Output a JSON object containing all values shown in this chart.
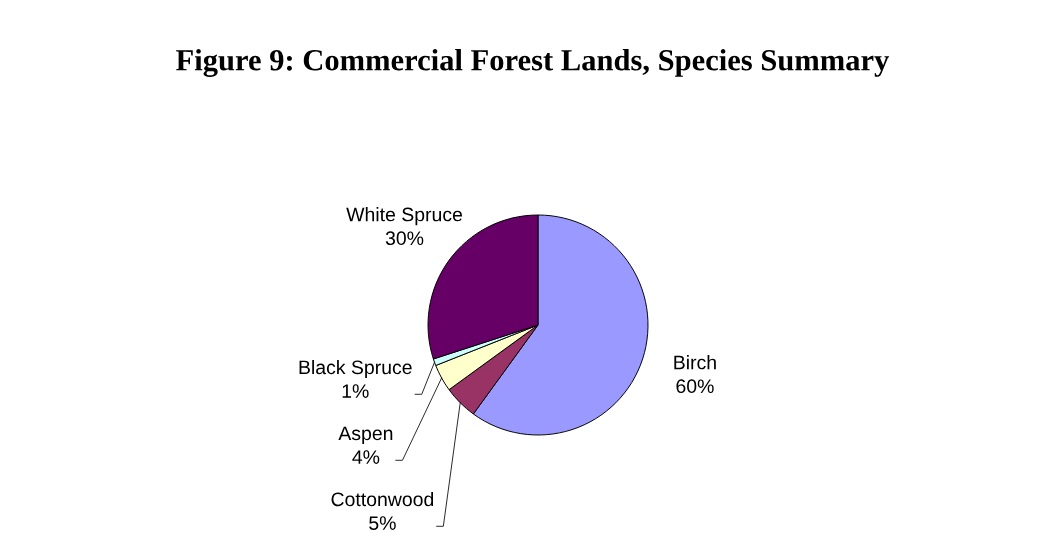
{
  "chart_data": {
    "type": "pie",
    "title": "Figure 9: Commercial Forest Lands, Species Summary",
    "categories": [
      "Birch",
      "Cottonwood",
      "Aspen",
      "Black Spruce",
      "White Spruce"
    ],
    "values": [
      60,
      5,
      4,
      1,
      30
    ],
    "colors": [
      "#9999ff",
      "#993366",
      "#ffffcc",
      "#ccffff",
      "#660066"
    ],
    "value_labels": [
      "60%",
      "5%",
      "4%",
      "1%",
      "30%"
    ]
  }
}
